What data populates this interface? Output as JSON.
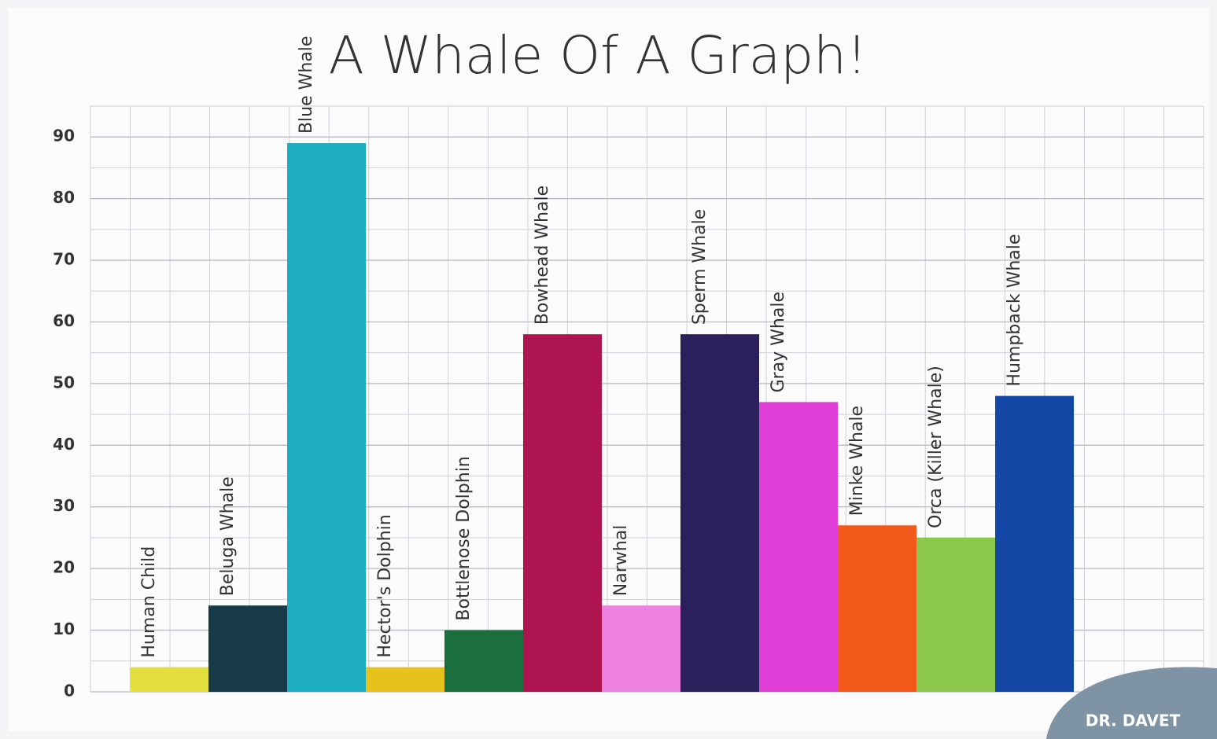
{
  "chart_data": {
    "type": "bar",
    "title": "A Whale Of A Graph!",
    "categories": [
      "Human Child",
      "Beluga Whale",
      "Blue Whale",
      "Hector's Dolphin",
      "Bottlenose Dolphin",
      "Bowhead Whale",
      "Narwhal",
      "Sperm Whale",
      "Gray Whale",
      "Minke Whale",
      "Orca (Killer Whale)",
      "Humpback Whale"
    ],
    "values": [
      4,
      14,
      89,
      4,
      10,
      58,
      14,
      58,
      47,
      27,
      25,
      48
    ],
    "colors": [
      "#e3df3c",
      "#163a47",
      "#1eaec2",
      "#e6c21a",
      "#1b6e3d",
      "#ad1450",
      "#ee82e2",
      "#2b1f5c",
      "#e23fd8",
      "#f2591a",
      "#8cc84b",
      "#1447a6"
    ],
    "ylim": [
      0,
      95
    ],
    "yticks": [
      0,
      10,
      20,
      30,
      40,
      50,
      60,
      70,
      80,
      90
    ],
    "grid": true,
    "watermark": "DR. DAVET"
  }
}
